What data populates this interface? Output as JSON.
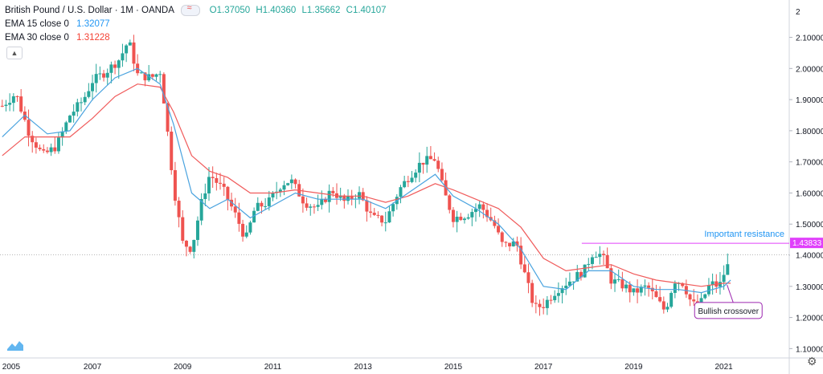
{
  "header": {
    "symbol": "British Pound / U.S. Dollar · 1M · OANDA",
    "open": "O1.37050",
    "high": "H1.40360",
    "low": "L1.35662",
    "close": "C1.40107"
  },
  "indicators": [
    {
      "label": "EMA 15 close 0",
      "value": "1.32077",
      "color": "#2196f3"
    },
    {
      "label": "EMA 30 close 0",
      "value": "1.31228",
      "color": "#f44336"
    }
  ],
  "colors": {
    "up": "#26a69a",
    "down": "#ef5350",
    "resistance": "#e040fb",
    "ema15": "#4aa3df",
    "ema30": "#f05b5b",
    "current_line": "#9e9e9e"
  },
  "annotations": {
    "resistance_label": "Important resistance",
    "resistance_value": "1.43833",
    "crossover_label": "Bullish crossover"
  },
  "chart_data": {
    "type": "candlestick",
    "title": "British Pound / U.S. Dollar · 1M · OANDA",
    "ylim": [
      1.07,
      2.22
    ],
    "y_ticks": [
      "2.10000",
      "2.00000",
      "1.90000",
      "1.80000",
      "1.70000",
      "1.60000",
      "1.50000",
      "1.40000",
      "1.30000",
      "1.20000",
      "1.10000"
    ],
    "y_tick_values": [
      2.1,
      2.0,
      1.9,
      1.8,
      1.7,
      1.6,
      1.5,
      1.4,
      1.3,
      1.2,
      1.1
    ],
    "y_tick_partial": "2",
    "x_ticks": [
      "2005",
      "2007",
      "2009",
      "2011",
      "2013",
      "2015",
      "2017",
      "2019",
      "2021"
    ],
    "x_tick_years": [
      2005,
      2007,
      2009,
      2011,
      2013,
      2015,
      2017,
      2019,
      2021
    ],
    "xlim": [
      2004.95,
      2022.45
    ],
    "close_path": [
      [
        2005.0,
        1.88
      ],
      [
        2005.3,
        1.92
      ],
      [
        2005.6,
        1.79
      ],
      [
        2005.9,
        1.72
      ],
      [
        2006.2,
        1.75
      ],
      [
        2006.5,
        1.85
      ],
      [
        2006.8,
        1.9
      ],
      [
        2007.0,
        1.96
      ],
      [
        2007.3,
        1.99
      ],
      [
        2007.6,
        2.03
      ],
      [
        2007.8,
        2.09
      ],
      [
        2008.0,
        1.98
      ],
      [
        2008.3,
        1.97
      ],
      [
        2008.5,
        1.99
      ],
      [
        2008.6,
        1.88
      ],
      [
        2008.8,
        1.62
      ],
      [
        2009.0,
        1.44
      ],
      [
        2009.2,
        1.42
      ],
      [
        2009.4,
        1.56
      ],
      [
        2009.6,
        1.66
      ],
      [
        2009.9,
        1.61
      ],
      [
        2010.2,
        1.52
      ],
      [
        2010.4,
        1.45
      ],
      [
        2010.6,
        1.55
      ],
      [
        2010.9,
        1.57
      ],
      [
        2011.2,
        1.63
      ],
      [
        2011.4,
        1.64
      ],
      [
        2011.7,
        1.57
      ],
      [
        2012.0,
        1.55
      ],
      [
        2012.3,
        1.61
      ],
      [
        2012.6,
        1.57
      ],
      [
        2012.9,
        1.6
      ],
      [
        2013.2,
        1.52
      ],
      [
        2013.5,
        1.51
      ],
      [
        2013.8,
        1.61
      ],
      [
        2014.0,
        1.65
      ],
      [
        2014.3,
        1.7
      ],
      [
        2014.6,
        1.71
      ],
      [
        2014.8,
        1.6
      ],
      [
        2015.0,
        1.52
      ],
      [
        2015.3,
        1.53
      ],
      [
        2015.6,
        1.56
      ],
      [
        2015.9,
        1.5
      ],
      [
        2016.1,
        1.43
      ],
      [
        2016.4,
        1.44
      ],
      [
        2016.6,
        1.33
      ],
      [
        2016.8,
        1.23
      ],
      [
        2017.0,
        1.24
      ],
      [
        2017.3,
        1.29
      ],
      [
        2017.6,
        1.32
      ],
      [
        2017.9,
        1.35
      ],
      [
        2018.1,
        1.41
      ],
      [
        2018.3,
        1.4
      ],
      [
        2018.5,
        1.32
      ],
      [
        2018.8,
        1.3
      ],
      [
        2019.0,
        1.28
      ],
      [
        2019.3,
        1.3
      ],
      [
        2019.5,
        1.26
      ],
      [
        2019.7,
        1.22
      ],
      [
        2019.9,
        1.32
      ],
      [
        2020.1,
        1.31
      ],
      [
        2020.3,
        1.24
      ],
      [
        2020.5,
        1.25
      ],
      [
        2020.7,
        1.31
      ],
      [
        2020.9,
        1.3
      ],
      [
        2021.0,
        1.34
      ],
      [
        2021.1,
        1.37
      ],
      [
        2021.15,
        1.4
      ]
    ],
    "ema15_path": [
      [
        2005.0,
        1.78
      ],
      [
        2005.5,
        1.85
      ],
      [
        2006.0,
        1.79
      ],
      [
        2006.5,
        1.8
      ],
      [
        2007.0,
        1.9
      ],
      [
        2007.5,
        1.97
      ],
      [
        2008.0,
        2.0
      ],
      [
        2008.5,
        1.95
      ],
      [
        2008.8,
        1.82
      ],
      [
        2009.2,
        1.6
      ],
      [
        2009.6,
        1.55
      ],
      [
        2010.0,
        1.58
      ],
      [
        2010.5,
        1.52
      ],
      [
        2011.0,
        1.56
      ],
      [
        2011.5,
        1.6
      ],
      [
        2012.0,
        1.58
      ],
      [
        2012.5,
        1.58
      ],
      [
        2013.0,
        1.58
      ],
      [
        2013.5,
        1.55
      ],
      [
        2014.0,
        1.6
      ],
      [
        2014.6,
        1.66
      ],
      [
        2015.0,
        1.59
      ],
      [
        2015.5,
        1.55
      ],
      [
        2016.0,
        1.5
      ],
      [
        2016.5,
        1.42
      ],
      [
        2017.0,
        1.3
      ],
      [
        2017.5,
        1.29
      ],
      [
        2018.0,
        1.35
      ],
      [
        2018.5,
        1.35
      ],
      [
        2019.0,
        1.3
      ],
      [
        2019.5,
        1.29
      ],
      [
        2020.0,
        1.29
      ],
      [
        2020.5,
        1.28
      ],
      [
        2021.0,
        1.3
      ],
      [
        2021.15,
        1.32
      ]
    ],
    "ema30_path": [
      [
        2005.0,
        1.72
      ],
      [
        2005.5,
        1.78
      ],
      [
        2006.0,
        1.78
      ],
      [
        2006.5,
        1.78
      ],
      [
        2007.0,
        1.84
      ],
      [
        2007.5,
        1.91
      ],
      [
        2008.0,
        1.95
      ],
      [
        2008.5,
        1.94
      ],
      [
        2008.8,
        1.86
      ],
      [
        2009.2,
        1.72
      ],
      [
        2009.6,
        1.67
      ],
      [
        2010.0,
        1.65
      ],
      [
        2010.5,
        1.6
      ],
      [
        2011.0,
        1.6
      ],
      [
        2011.5,
        1.61
      ],
      [
        2012.0,
        1.6
      ],
      [
        2012.5,
        1.59
      ],
      [
        2013.0,
        1.59
      ],
      [
        2013.5,
        1.57
      ],
      [
        2014.0,
        1.59
      ],
      [
        2014.6,
        1.63
      ],
      [
        2015.0,
        1.61
      ],
      [
        2015.5,
        1.58
      ],
      [
        2016.0,
        1.55
      ],
      [
        2016.5,
        1.49
      ],
      [
        2017.0,
        1.39
      ],
      [
        2017.5,
        1.35
      ],
      [
        2018.0,
        1.36
      ],
      [
        2018.5,
        1.37
      ],
      [
        2019.0,
        1.34
      ],
      [
        2019.5,
        1.32
      ],
      [
        2020.0,
        1.31
      ],
      [
        2020.5,
        1.3
      ],
      [
        2021.0,
        1.31
      ],
      [
        2021.15,
        1.31
      ]
    ],
    "current_price": 1.40107,
    "resistance_level": 1.43833,
    "resistance_from_year": 2017.85,
    "crossover_point": [
      2021.0,
      1.31
    ],
    "crossover_box_year": 2021.1,
    "crossover_box_price": 1.22
  }
}
